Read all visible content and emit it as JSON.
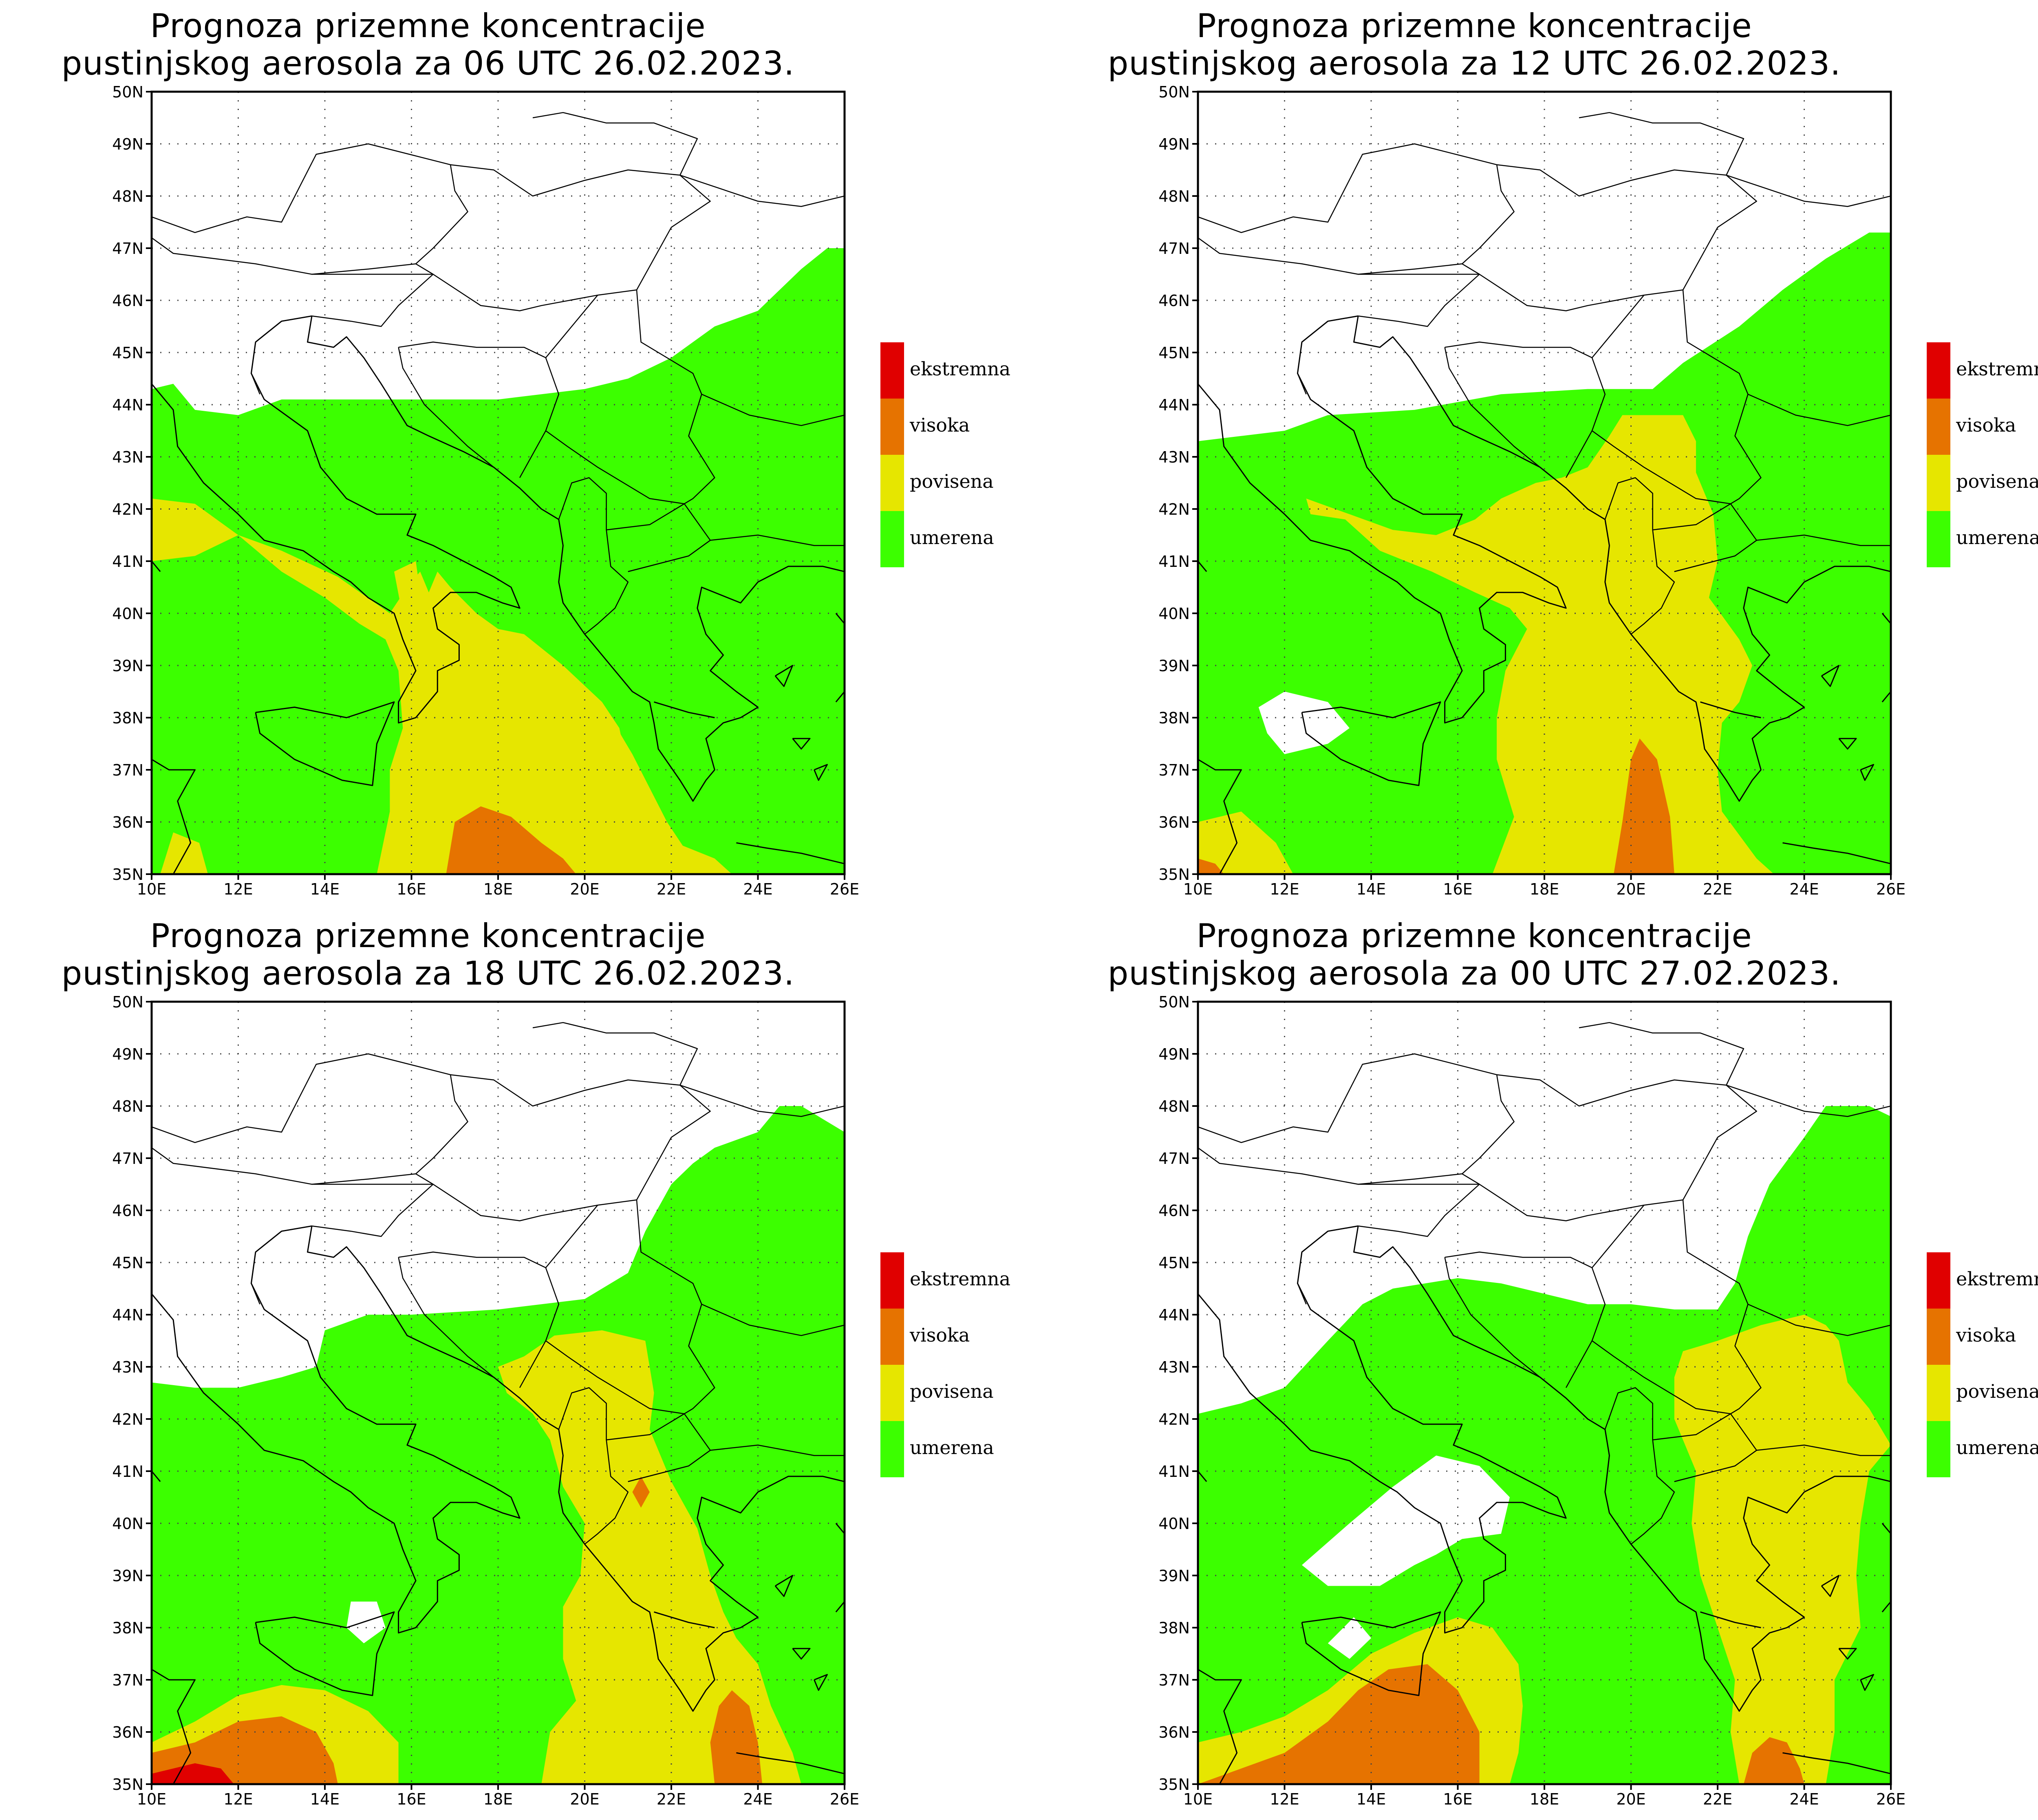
{
  "panels": [
    {
      "title_line1": "Prognoza prizemne koncentracije",
      "title_line2": "pustinjskog aerosola za 06 UTC 26.02.2023."
    },
    {
      "title_line1": "Prognoza prizemne koncentracije",
      "title_line2": "pustinjskog aerosola za 12 UTC 26.02.2023."
    },
    {
      "title_line1": "Prognoza prizemne koncentracije",
      "title_line2": "pustinjskog aerosola za 18 UTC 26.02.2023."
    },
    {
      "title_line1": "Prognoza prizemne koncentracije",
      "title_line2": "pustinjskog aerosola za 00 UTC 27.02.2023."
    }
  ],
  "axes": {
    "lat_labels": [
      "50N",
      "49N",
      "48N",
      "47N",
      "46N",
      "45N",
      "44N",
      "43N",
      "42N",
      "41N",
      "40N",
      "39N",
      "38N",
      "37N",
      "36N",
      "35N"
    ],
    "lon_labels": [
      "10E",
      "12E",
      "14E",
      "16E",
      "18E",
      "20E",
      "22E",
      "24E",
      "26E"
    ]
  },
  "legend": [
    {
      "label": "ekstremna",
      "color": "#e00000"
    },
    {
      "label": "visoka",
      "color": "#e67300"
    },
    {
      "label": "povisena",
      "color": "#e6e600"
    },
    {
      "label": "umerena",
      "color": "#3cff00"
    }
  ],
  "colors": {
    "umerena": "#3cff00",
    "povisena": "#e6e600",
    "visoka": "#e67300",
    "ekstremna": "#e00000"
  }
}
